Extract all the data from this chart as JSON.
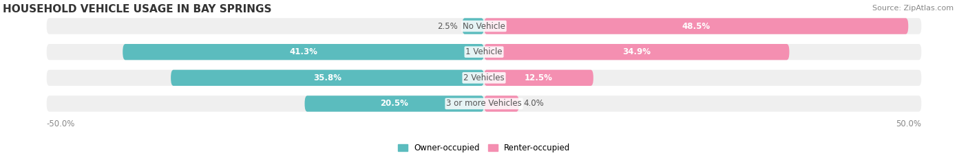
{
  "title": "HOUSEHOLD VEHICLE USAGE IN BAY SPRINGS",
  "source": "Source: ZipAtlas.com",
  "categories": [
    "No Vehicle",
    "1 Vehicle",
    "2 Vehicles",
    "3 or more Vehicles"
  ],
  "owner_values": [
    2.5,
    41.3,
    35.8,
    20.5
  ],
  "renter_values": [
    48.5,
    34.9,
    12.5,
    4.0
  ],
  "owner_color": "#5bbcbe",
  "renter_color": "#f48fb1",
  "bar_bg_color": "#efefef",
  "owner_label": "Owner-occupied",
  "renter_label": "Renter-occupied",
  "axis_min": -50.0,
  "axis_max": 50.0,
  "axis_label_left": "-50.0%",
  "axis_label_right": "50.0%",
  "title_fontsize": 11,
  "source_fontsize": 8,
  "label_fontsize": 8.5,
  "category_fontsize": 8.5,
  "legend_fontsize": 8.5,
  "background_color": "#ffffff"
}
